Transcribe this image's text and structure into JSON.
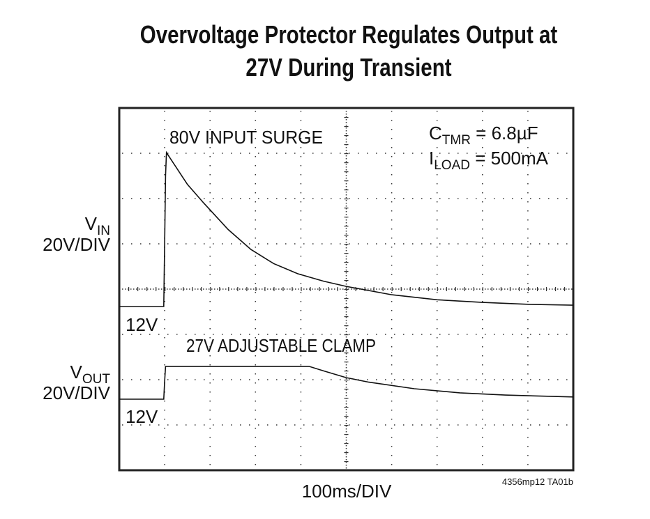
{
  "chart_data": {
    "type": "line",
    "title": [
      "Overvoltage Protector Regulates Output at",
      "27V During Transient"
    ],
    "xlabel": "100ms/DIV",
    "x_divisions": 10,
    "y_divisions": 8,
    "grid": true,
    "figure_id": "4356mp12 TA01b",
    "annotations": {
      "surge": "80V INPUT SURGE",
      "clamp": "27V ADJUSTABLE CLAMP",
      "ctmr_main": "C",
      "ctmr_sub": "TMR",
      "ctmr_val": " = 6.8µF",
      "iload_main": "I",
      "iload_sub": "LOAD",
      "iload_val": " = 500mA"
    },
    "channels": [
      {
        "name_main": "V",
        "name_sub": "IN",
        "scale": "20V/DIV",
        "ref_label": "12V"
      },
      {
        "name_main": "V",
        "name_sub": "OUT",
        "scale": "20V/DIV",
        "ref_label": "12V"
      }
    ],
    "x_unit": "ms",
    "series": [
      {
        "name": "VIN",
        "x": [
          0,
          50,
          98,
          100,
          102,
          104,
          150,
          187,
          240,
          290,
          340,
          393,
          450,
          500,
          600,
          700,
          800,
          900,
          1000
        ],
        "y": [
          12,
          12,
          12,
          40,
          70,
          80,
          66,
          57.5,
          46,
          37.2,
          31,
          26.5,
          23.2,
          20.9,
          17.2,
          15,
          13.8,
          13,
          12.6
        ]
      },
      {
        "name": "VOUT",
        "x": [
          0,
          50,
          98,
          100,
          102,
          200,
          300,
          418,
          450,
          500,
          550,
          650,
          750,
          850,
          1000
        ],
        "y": [
          12,
          12,
          12,
          20,
          26.5,
          26.5,
          26.5,
          26.5,
          24.5,
          21.5,
          19.5,
          16.6,
          14.8,
          13.8,
          13
        ]
      }
    ]
  }
}
